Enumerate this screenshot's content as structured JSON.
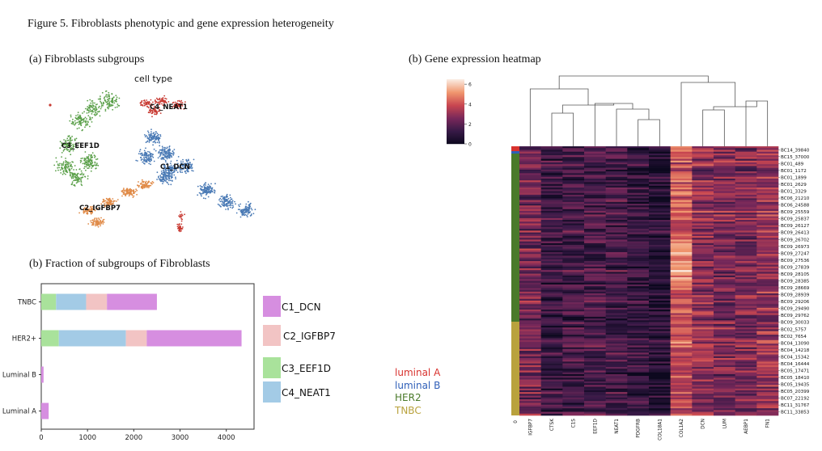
{
  "figure_title": "Figure 5. Fibroblasts phenotypic and gene expression heterogeneity",
  "panel_a": {
    "title": "(a)    Fibroblasts subgroups",
    "umap_title": "cell type",
    "clusters": [
      {
        "label": "C1_DCN",
        "color": "#4a7ab5"
      },
      {
        "label": "C2_IGFBP7",
        "color": "#e08a47"
      },
      {
        "label": "C3_EEF1D",
        "color": "#5ba04a"
      },
      {
        "label": "C4_NEAT1",
        "color": "#c83a32"
      }
    ]
  },
  "panel_b_bar": {
    "title": "(b) Fraction of subgroups of Fibroblasts",
    "chart_data": {
      "type": "bar",
      "orientation": "horizontal",
      "stacked": true,
      "categories": [
        "TNBC",
        "HER2+",
        "Luminal B",
        "Luminal A"
      ],
      "series": [
        {
          "name": "C3_EEF1D",
          "color": "#a9e29b",
          "values": [
            320,
            380,
            0,
            0
          ]
        },
        {
          "name": "C4_NEAT1",
          "color": "#a3cbe6",
          "values": [
            650,
            1450,
            0,
            0
          ]
        },
        {
          "name": "C2_IGFBP7",
          "color": "#f2c4c4",
          "values": [
            450,
            450,
            0,
            0
          ]
        },
        {
          "name": "C1_DCN",
          "color": "#d68ee0",
          "values": [
            1080,
            2050,
            50,
            160
          ]
        }
      ],
      "xticks": [
        0,
        1000,
        2000,
        3000,
        4000
      ],
      "xlim": [
        0,
        4600
      ],
      "legend": [
        "C1_DCN",
        "C2_IGFBP7",
        "C3_EEF1D",
        "C4_NEAT1"
      ],
      "legend_placement": "right"
    }
  },
  "subtype_legend": [
    {
      "label": "luminal A",
      "color": "#d8322e"
    },
    {
      "label": "luminal B",
      "color": "#2f5fb8"
    },
    {
      "label": "HER2",
      "color": "#4a7a2a"
    },
    {
      "label": "TNBC",
      "color": "#b9a23d"
    }
  ],
  "panel_b_heat": {
    "title": "(b)    Gene expression heatmap",
    "colorbar_ticks": [
      "6",
      "4",
      "2",
      "0"
    ],
    "corner_label": "0",
    "chart_data": {
      "type": "heatmap",
      "genes": [
        "IGFBP7",
        "CTSK",
        "C1S",
        "EEF1D",
        "NEAT1",
        "PDGFRB",
        "COL18A1",
        "COL1A2",
        "DCN",
        "LUM",
        "AEBP1",
        "FN1"
      ],
      "row_labels": [
        "BC14_39840",
        "BC15_37000",
        "BC01_489",
        "BC01_1172",
        "BC01_1899",
        "BC01_2629",
        "BC01_3329",
        "BC06_21210",
        "BC06_24588",
        "BC09_25559",
        "BC09_25837",
        "BC09_26127",
        "BC09_26413",
        "BC09_26702",
        "BC09_26973",
        "BC09_27247",
        "BC09_27536",
        "BC09_27839",
        "BC09_28105",
        "BC09_28385",
        "BC09_28669",
        "BC09_28939",
        "BC09_29206",
        "BC09_29490",
        "BC09_29762",
        "BC09_30033",
        "BC02_5757",
        "BC02_7654",
        "BC04_13090",
        "BC04_14218",
        "BC04_15342",
        "BC04_16444",
        "BC05_17471",
        "BC05_18410",
        "BC05_19435",
        "BC05_20399",
        "BC07_22192",
        "BC11_31767",
        "BC11_33853"
      ],
      "colorbar_range": [
        0,
        6.5
      ]
    }
  }
}
